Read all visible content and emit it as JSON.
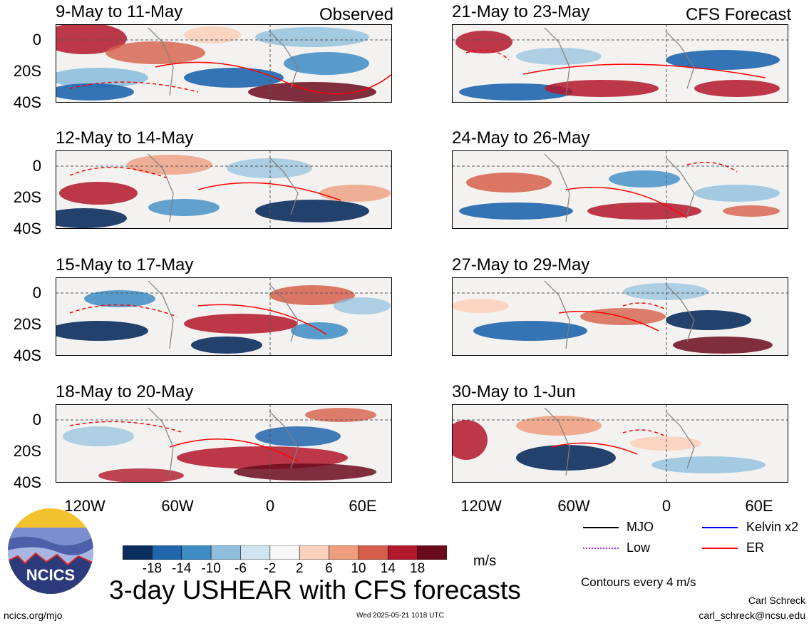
{
  "panels": [
    {
      "title": "9-May to 11-May",
      "corner": "Observed"
    },
    {
      "title": "12-May to 14-May",
      "corner": ""
    },
    {
      "title": "15-May to 17-May",
      "corner": ""
    },
    {
      "title": "18-May to 20-May",
      "corner": ""
    },
    {
      "title": "21-May to 23-May",
      "corner": "CFS Forecast"
    },
    {
      "title": "24-May to 26-May",
      "corner": ""
    },
    {
      "title": "27-May to 29-May",
      "corner": ""
    },
    {
      "title": "30-May to 1-Jun",
      "corner": ""
    }
  ],
  "lat_labels": [
    "0",
    "20S",
    "40S"
  ],
  "lon_labels": [
    "120W",
    "60W",
    "0",
    "60E"
  ],
  "legend": {
    "mjo": "MJO",
    "kelvin": "Kelvin x2",
    "low": "Low",
    "er": "ER",
    "colors": {
      "mjo": "#000000",
      "kelvin": "#0000ff",
      "low": "#a020f0",
      "er": "#ff0000"
    }
  },
  "colorbar": {
    "labels": [
      "-18",
      "-14",
      "-10",
      "-6",
      "-2",
      "2",
      "6",
      "10",
      "14",
      "18"
    ],
    "unit": "m/s",
    "colors": [
      "#0b2d5e",
      "#2066ad",
      "#3d8cc4",
      "#8fbfdd",
      "#cfe3f0",
      "#f7f7f7",
      "#f9d1bd",
      "#ee9d7f",
      "#d65f4b",
      "#b2182b",
      "#6b0a1d"
    ]
  },
  "contours_note": "Contours every 4 m/s",
  "main_title": "3-day USHEAR with CFS forecasts",
  "logo_text": "NCICS",
  "url": "ncics.org/mjo",
  "timestamp": "Wed 2025-05-21 1018 UTC",
  "author": "Carl Schreck",
  "email": "carl_schreck@ncsu.edu"
}
